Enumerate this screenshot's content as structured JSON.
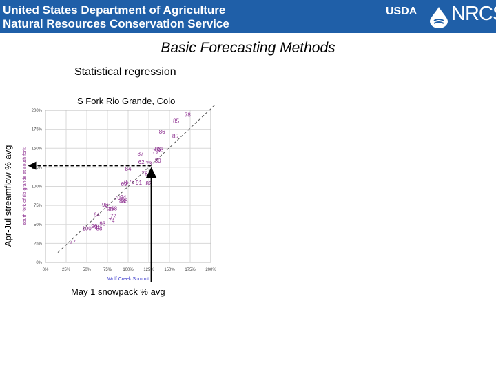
{
  "banner": {
    "line1": "United States Department of Agriculture",
    "line2": "Natural Resources Conservation Service",
    "usda_logo": "USDA",
    "nrcs_logo": "NRCS",
    "color": "#1f5fa8"
  },
  "slide": {
    "title": "Basic Forecasting Methods",
    "subtitle": "Statistical regression",
    "y_label": "Apr-Jul streamflow % avg",
    "x_label": "May 1 snowpack % avg"
  },
  "chart_data": {
    "type": "scatter",
    "title": "S Fork Rio Grande, Colo",
    "xlabel": "Wolf Creek Summit",
    "ylabel": "south fork of rio grande at south fork",
    "xlim": [
      0,
      200
    ],
    "ylim": [
      0,
      200
    ],
    "xticks": [
      "0%",
      "25%",
      "50%",
      "75%",
      "100%",
      "125%",
      "150%",
      "175%",
      "200%"
    ],
    "yticks": [
      "0%",
      "25%",
      "50%",
      "75%",
      "100%",
      "125%",
      "150%",
      "175%",
      "200%"
    ],
    "grid": true,
    "point_color": "#8b2c8e",
    "points": [
      {
        "x": 33,
        "y": 27,
        "label": "77"
      },
      {
        "x": 50,
        "y": 45,
        "label": "100"
      },
      {
        "x": 59,
        "y": 48,
        "label": "96"
      },
      {
        "x": 63,
        "y": 47,
        "label": "95"
      },
      {
        "x": 65,
        "y": 45,
        "label": "83"
      },
      {
        "x": 69,
        "y": 51,
        "label": "93"
      },
      {
        "x": 62,
        "y": 63,
        "label": "64"
      },
      {
        "x": 80,
        "y": 55,
        "label": "74"
      },
      {
        "x": 82,
        "y": 61,
        "label": "72"
      },
      {
        "x": 72,
        "y": 76,
        "label": "92"
      },
      {
        "x": 76,
        "y": 74,
        "label": "71"
      },
      {
        "x": 78,
        "y": 70,
        "label": "90"
      },
      {
        "x": 83,
        "y": 71,
        "label": "68"
      },
      {
        "x": 87,
        "y": 85,
        "label": "70"
      },
      {
        "x": 94,
        "y": 86,
        "label": "94"
      },
      {
        "x": 93,
        "y": 81,
        "label": "89"
      },
      {
        "x": 96,
        "y": 81,
        "label": "88"
      },
      {
        "x": 95,
        "y": 103,
        "label": "69"
      },
      {
        "x": 97,
        "y": 106,
        "label": "75"
      },
      {
        "x": 104,
        "y": 106,
        "label": "76"
      },
      {
        "x": 113,
        "y": 105,
        "label": "91"
      },
      {
        "x": 125,
        "y": 104,
        "label": "82"
      },
      {
        "x": 100,
        "y": 123,
        "label": "84"
      },
      {
        "x": 120,
        "y": 117,
        "label": "78"
      },
      {
        "x": 116,
        "y": 132,
        "label": "62"
      },
      {
        "x": 125,
        "y": 130,
        "label": "73"
      },
      {
        "x": 136,
        "y": 134,
        "label": "80"
      },
      {
        "x": 115,
        "y": 143,
        "label": "87"
      },
      {
        "x": 133,
        "y": 146,
        "label": "79"
      },
      {
        "x": 136,
        "y": 149,
        "label": "86"
      },
      {
        "x": 139,
        "y": 148,
        "label": "93"
      },
      {
        "x": 141,
        "y": 172,
        "label": "86"
      },
      {
        "x": 157,
        "y": 166,
        "label": "85"
      },
      {
        "x": 158,
        "y": 186,
        "label": "85"
      },
      {
        "x": 172,
        "y": 194,
        "label": "78"
      }
    ],
    "trendline": {
      "x": [
        15,
        205
      ],
      "y": [
        13,
        207
      ],
      "style": "dashed"
    },
    "example": {
      "x": 128,
      "y": 127
    }
  }
}
